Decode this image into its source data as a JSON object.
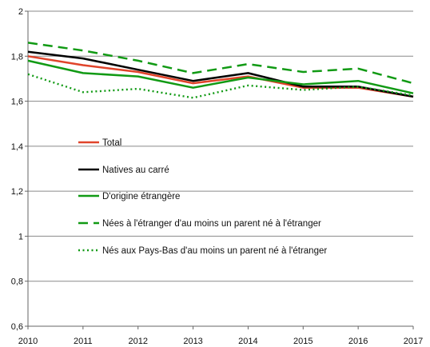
{
  "chart_data": {
    "type": "line",
    "title": "",
    "xlabel": "",
    "ylabel": "",
    "x": [
      2010,
      2011,
      2012,
      2013,
      2014,
      2015,
      2016,
      2017
    ],
    "xticks": [
      "2010",
      "2011",
      "2012",
      "2013",
      "2014",
      "2015",
      "2016",
      "2017"
    ],
    "ylim": [
      0.6,
      2.0
    ],
    "yticks": [
      "0,6",
      "0,8",
      "1",
      "1,2",
      "1,4",
      "1,6",
      "1,8",
      "2"
    ],
    "grid": "horizontal",
    "legend_position": "center-left",
    "series": [
      {
        "name": "Total",
        "color": "#e0442b",
        "style": "solid",
        "values": [
          1.8,
          1.76,
          1.73,
          1.68,
          1.71,
          1.66,
          1.66,
          1.62
        ]
      },
      {
        "name": "Natives au carré",
        "color": "#000000",
        "style": "solid",
        "values": [
          1.82,
          1.79,
          1.74,
          1.69,
          1.725,
          1.665,
          1.665,
          1.62
        ]
      },
      {
        "name": "D'origine étrangère",
        "color": "#119a14",
        "style": "solid",
        "values": [
          1.78,
          1.725,
          1.71,
          1.66,
          1.705,
          1.675,
          1.69,
          1.635
        ]
      },
      {
        "name": "Nées à l'étranger d'au moins un parent né à l'étranger",
        "color": "#119a14",
        "style": "dashed",
        "values": [
          1.86,
          1.825,
          1.78,
          1.725,
          1.765,
          1.73,
          1.745,
          1.68
        ]
      },
      {
        "name": "Nés aux Pays-Bas d'au moins un parent né à l'étranger",
        "color": "#119a14",
        "style": "dotted",
        "values": [
          1.72,
          1.64,
          1.655,
          1.615,
          1.67,
          1.65,
          1.665,
          1.625
        ]
      }
    ]
  }
}
